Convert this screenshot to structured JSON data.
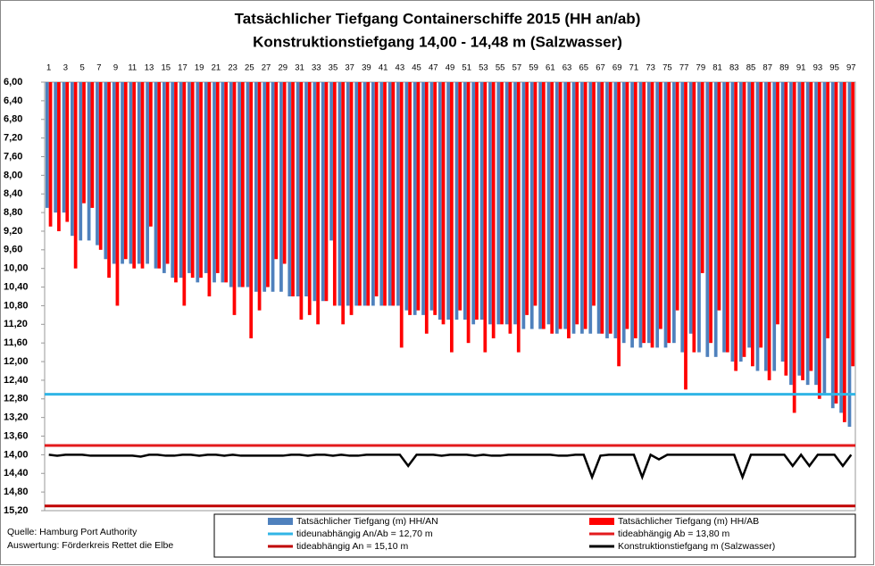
{
  "chart_data": {
    "type": "bar",
    "title": "Tatsächlicher  Tiefgang Containerschiffe  2015 (HH an/ab)",
    "subtitle": "Konstruktionstiefgang   14,00 - 14,48 m  (Salzwasser)",
    "source": "Quelle: Hamburg Port Authority",
    "evaluation": "Auswertung: Förderkreis Rettet die Elbe",
    "categories": [
      1,
      null,
      3,
      null,
      5,
      null,
      7,
      null,
      9,
      null,
      11,
      null,
      13,
      null,
      15,
      null,
      17,
      null,
      19,
      null,
      21,
      null,
      23,
      null,
      25,
      null,
      27,
      null,
      29,
      null,
      31,
      null,
      33,
      null,
      35,
      null,
      37,
      null,
      39,
      null,
      41,
      null,
      43,
      null,
      45,
      null,
      47,
      null,
      49,
      null,
      51,
      null,
      53,
      null,
      55,
      null,
      57,
      null,
      59,
      null,
      61,
      null,
      63,
      null,
      65,
      null,
      67,
      null,
      69,
      null,
      71,
      null,
      73,
      null,
      75,
      null,
      77,
      null,
      79,
      null,
      81,
      null,
      83,
      null,
      85,
      null,
      87,
      null,
      89,
      null,
      91,
      null,
      93,
      null,
      95,
      null,
      97
    ],
    "series": [
      {
        "name": "Tatsächlicher Tiefgang (m) HH/AN",
        "color": "#4f81bd",
        "values": [
          8.7,
          8.8,
          8.8,
          9.3,
          9.4,
          9.4,
          9.5,
          9.8,
          9.9,
          9.9,
          9.9,
          9.9,
          9.9,
          10.0,
          10.1,
          10.2,
          10.2,
          10.1,
          10.3,
          10.1,
          10.3,
          10.3,
          10.4,
          10.4,
          10.4,
          10.5,
          10.5,
          10.5,
          10.5,
          10.6,
          10.6,
          10.6,
          10.7,
          10.7,
          9.4,
          10.8,
          10.8,
          10.8,
          10.8,
          10.8,
          10.8,
          10.8,
          10.8,
          10.9,
          11.0,
          11.0,
          10.9,
          11.1,
          11.1,
          11.1,
          11.1,
          11.2,
          11.1,
          11.2,
          11.2,
          11.2,
          11.2,
          11.3,
          11.3,
          11.3,
          11.2,
          11.4,
          11.3,
          11.4,
          11.4,
          11.4,
          11.4,
          11.5,
          11.5,
          11.6,
          11.7,
          11.7,
          11.6,
          11.7,
          11.7,
          11.6,
          11.8,
          11.4,
          11.8,
          11.9,
          11.9,
          11.8,
          12.0,
          12.0,
          11.7,
          12.2,
          12.2,
          12.2,
          12.0,
          12.5,
          12.3,
          12.5,
          12.5,
          12.7,
          13.0,
          13.1,
          13.4
        ]
      },
      {
        "name": "Tatsächlicher Tiefgang (m) HH/AB",
        "color": "#ff0000",
        "values": [
          9.1,
          9.2,
          9.0,
          10.0,
          8.6,
          8.7,
          9.6,
          10.2,
          10.8,
          9.8,
          10.0,
          10.0,
          9.1,
          10.0,
          9.9,
          10.3,
          10.8,
          10.2,
          10.2,
          10.6,
          10.1,
          10.3,
          11.0,
          10.4,
          11.5,
          10.9,
          10.4,
          9.8,
          9.9,
          10.6,
          11.1,
          11.0,
          11.2,
          10.7,
          10.8,
          11.2,
          11.0,
          10.8,
          10.8,
          10.6,
          10.8,
          10.8,
          11.7,
          11.0,
          10.9,
          11.4,
          11.0,
          11.2,
          11.8,
          10.9,
          11.6,
          11.1,
          11.8,
          11.5,
          11.2,
          11.4,
          11.8,
          11.0,
          10.8,
          11.3,
          11.4,
          11.3,
          11.5,
          11.2,
          11.3,
          10.8,
          11.4,
          11.4,
          12.1,
          11.3,
          11.5,
          11.6,
          11.7,
          11.3,
          11.6,
          10.9,
          12.6,
          11.8,
          10.1,
          11.6,
          10.9,
          11.8,
          12.2,
          11.9,
          12.1,
          11.7,
          12.4,
          11.2,
          12.3,
          13.1,
          12.4,
          12.2,
          12.8,
          11.5,
          12.9,
          13.3,
          12.1
        ]
      },
      {
        "name": "Konstruktionstiefgang  m (Salzwasser)",
        "color": "#000000",
        "line": true,
        "values": [
          14.0,
          14.02,
          14.0,
          14.0,
          14.0,
          14.02,
          14.02,
          14.02,
          14.02,
          14.02,
          14.02,
          14.04,
          14.0,
          14.0,
          14.02,
          14.02,
          14.0,
          14.0,
          14.02,
          14.0,
          14.0,
          14.02,
          14.0,
          14.02,
          14.02,
          14.02,
          14.02,
          14.02,
          14.02,
          14.0,
          14.0,
          14.02,
          14.0,
          14.0,
          14.02,
          14.0,
          14.02,
          14.02,
          14.0,
          14.0,
          14.0,
          14.0,
          14.0,
          14.24,
          14.0,
          14.0,
          14.0,
          14.02,
          14.0,
          14.0,
          14.0,
          14.02,
          14.0,
          14.02,
          14.02,
          14.0,
          14.0,
          14.0,
          14.0,
          14.0,
          14.0,
          14.02,
          14.02,
          14.0,
          14.0,
          14.48,
          14.02,
          14.0,
          14.0,
          14.0,
          14.0,
          14.48,
          14.0,
          14.1,
          14.0,
          14.0,
          14.0,
          14.0,
          14.0,
          14.0,
          14.0,
          14.0,
          14.0,
          14.48,
          14.0,
          14.0,
          14.0,
          14.0,
          14.0,
          14.24,
          14.0,
          14.24,
          14.0,
          14.0,
          14.0,
          14.24,
          14.0
        ]
      }
    ],
    "reference_lines": [
      {
        "name": "tideunabhängig An/Ab = 12,70 m",
        "value": 12.7,
        "color": "#31b5e6"
      },
      {
        "name": "tideabhängig Ab = 13,80 m",
        "value": 13.8,
        "color": "#e31a1c"
      },
      {
        "name": "tideabhängig An = 15,10 m",
        "value": 15.1,
        "color": "#c00000"
      }
    ],
    "ylim": [
      6.0,
      15.2
    ],
    "reversed": true,
    "yticks": [
      {
        "value": 6.0,
        "label": "6,00"
      },
      {
        "value": 6.4,
        "label": "6,40"
      },
      {
        "value": 6.8,
        "label": "6,80"
      },
      {
        "value": 7.2,
        "label": "7,20"
      },
      {
        "value": 7.6,
        "label": "7,60"
      },
      {
        "value": 8.0,
        "label": "8,00"
      },
      {
        "value": 8.4,
        "label": "8,40"
      },
      {
        "value": 8.8,
        "label": "8,80"
      },
      {
        "value": 9.2,
        "label": "9,20"
      },
      {
        "value": 9.6,
        "label": "9,60"
      },
      {
        "value": 10.0,
        "label": "10,00"
      },
      {
        "value": 10.4,
        "label": "10,40"
      },
      {
        "value": 10.8,
        "label": "10,80"
      },
      {
        "value": 11.2,
        "label": "11,20"
      },
      {
        "value": 11.6,
        "label": "11,60"
      },
      {
        "value": 12.0,
        "label": "12,00"
      },
      {
        "value": 12.4,
        "label": "12,40"
      },
      {
        "value": 12.8,
        "label": "12,80"
      },
      {
        "value": 13.2,
        "label": "13,20"
      },
      {
        "value": 13.6,
        "label": "13,60"
      },
      {
        "value": 14.0,
        "label": "14,00"
      },
      {
        "value": 14.4,
        "label": "14,40"
      },
      {
        "value": 14.8,
        "label": "14,80"
      },
      {
        "value": 15.2,
        "label": "15,20"
      }
    ]
  }
}
